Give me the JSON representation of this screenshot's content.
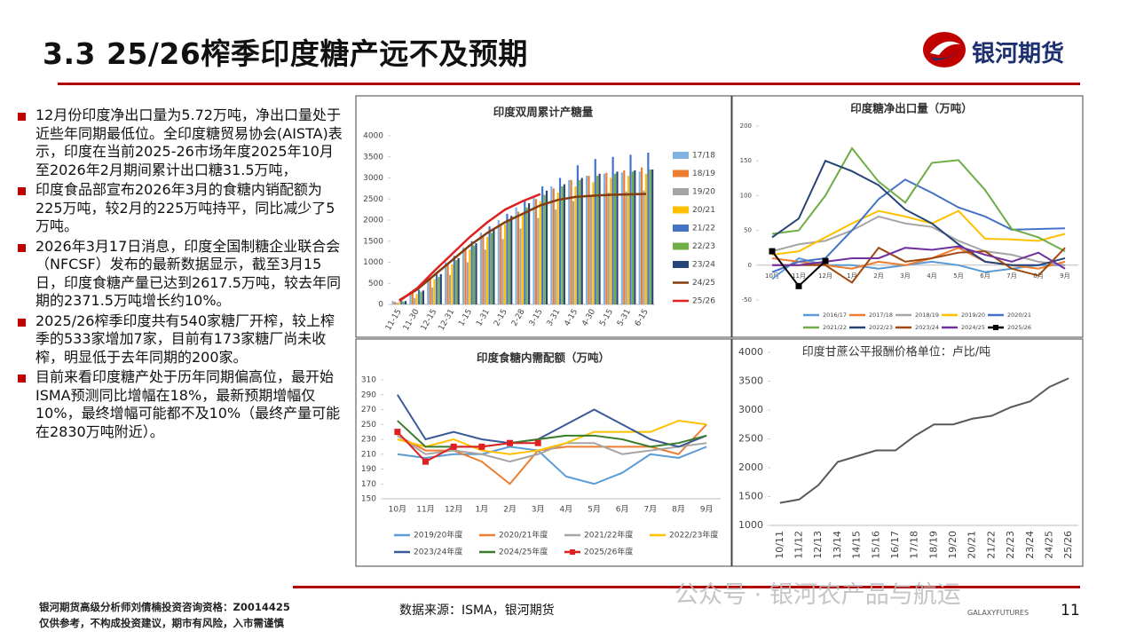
{
  "header": {
    "title": "3.3  25/26榨季印度糖产远不及预期",
    "logo": "银河期货"
  },
  "bullets": [
    "12月份印度净出口量为5.72万吨，净出口量处于近些年同期最低位。全印度糖贸易协会(AISTA)表示，印度在当前2025-26市场年度2025年10月至2026年2月期间累计出口糖31.5万吨，",
    "印度食品部宣布2026年3月的食糖内销配额为225万吨，较2月的225万吨持平，同比减少了5万吨。",
    "2026年3月17日消息，印度全国制糖企业联合会（NFCSF）发布的最新数据显示，截至3月15日，印度食糖产量已达到2617.5万吨，较去年同期的2371.5万吨增长约10%。",
    "2025/26榨季印度共有540家糖厂开榨，较上榨季的533家增加7家，目前有173家糖厂尚未收榨，明显低于去年同期的200家。",
    "目前来看印度糖产处于历年同期偏高位，最开始ISMA预测同比增幅在18%，最新预期增幅仅10%，最终增幅可能都不及10%（最终产量可能在2830万吨附近）。"
  ],
  "footer": {
    "analyst": "银河期货高级分析师刘倩楠投资咨询资格：Z0014425",
    "disclaimer": "仅供参考，不构成投资建议，期市有风险，入市需谨慎",
    "source": "数据来源：ISMA，银河期货",
    "watermark": "公众号 · 银河农产品与航运",
    "brand": "GALAXYFUTURES",
    "page": "11"
  },
  "chart_data": [
    {
      "type": "bar",
      "title": "印度双周累计产糖量",
      "grid": false,
      "legend": "right",
      "categories": [
        "11-15",
        "11-30",
        "12-15",
        "12-31",
        "1-15",
        "1-31",
        "2-15",
        "2-28",
        "3-15",
        "3-31",
        "4-15",
        "4-30",
        "5-15",
        "5-31",
        "6-15"
      ],
      "ylim": [
        0,
        4000
      ],
      "yticks": [
        0,
        500,
        1000,
        1500,
        2000,
        2500,
        3000,
        3500,
        4000
      ],
      "series": [
        {
          "name": "17/18",
          "color": "#7fb2e0",
          "values": [
            80,
            300,
            650,
            1000,
            1350,
            1700,
            2000,
            2300,
            2550,
            2800,
            2950,
            3050,
            3100,
            3130,
            3150
          ]
        },
        {
          "name": "18/19",
          "color": "#ed7d31",
          "values": [
            60,
            280,
            620,
            980,
            1300,
            1620,
            1900,
            2200,
            2500,
            2750,
            2950,
            3050,
            3120,
            3180,
            3250
          ]
        },
        {
          "name": "19/20",
          "color": "#a5a5a5",
          "values": [
            40,
            150,
            400,
            700,
            1000,
            1300,
            1550,
            1800,
            2050,
            2250,
            2450,
            2600,
            2650,
            2680,
            2700
          ]
        },
        {
          "name": "20/21",
          "color": "#ffc000",
          "values": [
            50,
            250,
            600,
            950,
            1300,
            1600,
            1900,
            2150,
            2450,
            2650,
            2800,
            2900,
            3000,
            3050,
            3100
          ]
        },
        {
          "name": "21/22",
          "color": "#4472c4",
          "values": [
            90,
            350,
            750,
            1150,
            1500,
            1850,
            2150,
            2450,
            2800,
            3000,
            3300,
            3450,
            3500,
            3550,
            3600
          ]
        },
        {
          "name": "22/23",
          "color": "#70ad47",
          "values": [
            70,
            300,
            650,
            1050,
            1400,
            1700,
            2000,
            2300,
            2600,
            2800,
            2950,
            3050,
            3100,
            3150,
            3200
          ]
        },
        {
          "name": "23/24",
          "color": "#264478",
          "values": [
            80,
            330,
            720,
            1100,
            1450,
            1800,
            2100,
            2400,
            2700,
            2850,
            3000,
            3100,
            3150,
            3180,
            3200
          ]
        },
        {
          "name": "24/25",
          "color": "#843c0c",
          "type": "line",
          "values": [
            100,
            350,
            700,
            1050,
            1400,
            1700,
            1950,
            2150,
            2350,
            2480,
            2550,
            2580,
            2600,
            2610,
            2620
          ]
        },
        {
          "name": "25/26",
          "color": "#e02020",
          "type": "line",
          "values": [
            80,
            380,
            800,
            1200,
            1600,
            1950,
            2250,
            2450,
            2617.5,
            null,
            null,
            null,
            null,
            null,
            null
          ]
        }
      ]
    },
    {
      "type": "line",
      "title": "印度糖净出口量（万吨）",
      "grid": false,
      "legend": "bottom",
      "categories": [
        "10月",
        "11月",
        "12月",
        "1月",
        "2月",
        "3月",
        "4月",
        "5月",
        "6月",
        "7月",
        "8月",
        "9月"
      ],
      "ylim": [
        -50,
        200
      ],
      "yticks": [
        -50,
        0,
        50,
        100,
        150,
        200
      ],
      "series": [
        {
          "name": "2016/17",
          "color": "#5b9bd5",
          "values": [
            -20,
            10,
            0,
            0,
            -5,
            0,
            5,
            0,
            -10,
            -5,
            0,
            0
          ]
        },
        {
          "name": "2017/18",
          "color": "#ed7d31",
          "values": [
            10,
            5,
            0,
            -5,
            5,
            0,
            10,
            25,
            5,
            0,
            -5,
            5
          ]
        },
        {
          "name": "2018/19",
          "color": "#a5a5a5",
          "values": [
            20,
            30,
            35,
            50,
            70,
            60,
            55,
            35,
            20,
            15,
            5,
            0
          ]
        },
        {
          "name": "2019/20",
          "color": "#ffc000",
          "values": [
            15,
            20,
            40,
            60,
            78,
            70,
            60,
            78,
            38,
            37,
            35,
            45
          ]
        },
        {
          "name": "2020/21",
          "color": "#4472c4",
          "values": [
            -10,
            5,
            10,
            50,
            95,
            123,
            104,
            83,
            70,
            51,
            52,
            53
          ]
        },
        {
          "name": "2021/22",
          "color": "#70ad47",
          "values": [
            45,
            50,
            100,
            168,
            120,
            90,
            147,
            151,
            108,
            52,
            40,
            20
          ]
        },
        {
          "name": "2022/23",
          "color": "#264478",
          "values": [
            40,
            67,
            150,
            135,
            115,
            80,
            60,
            30,
            5,
            0,
            0,
            10
          ]
        },
        {
          "name": "2023/24",
          "color": "#9e480e",
          "values": [
            0,
            0,
            0,
            -25,
            25,
            5,
            10,
            18,
            20,
            -5,
            -15,
            25
          ]
        },
        {
          "name": "2024/25",
          "color": "#7030a0",
          "values": [
            0,
            0,
            5,
            10,
            10,
            25,
            22,
            27,
            15,
            5,
            18,
            -5
          ]
        },
        {
          "name": "2025/26",
          "color": "#000000",
          "marker": "square",
          "values": [
            20,
            -30,
            6,
            null,
            null,
            null,
            null,
            null,
            null,
            null,
            null,
            null
          ]
        }
      ]
    },
    {
      "type": "line",
      "title": "印度食糖内需配额（万吨）",
      "grid": false,
      "legend": "bottom",
      "categories": [
        "10月",
        "11月",
        "12月",
        "1月",
        "2月",
        "3月",
        "4月",
        "5月",
        "6月",
        "7月",
        "8月",
        "9月"
      ],
      "ylim": [
        150,
        310
      ],
      "yticks": [
        150,
        170,
        190,
        210,
        230,
        250,
        270,
        290,
        310
      ],
      "series": [
        {
          "name": "2019/20年度",
          "color": "#5b9bd5",
          "values": [
            210,
            205,
            210,
            210,
            220,
            215,
            180,
            170,
            185,
            210,
            205,
            220
          ]
        },
        {
          "name": "2020/21年度",
          "color": "#ed7d31",
          "values": [
            235,
            215,
            215,
            200,
            170,
            215,
            220,
            220,
            220,
            220,
            210,
            250
          ]
        },
        {
          "name": "2021/22年度",
          "color": "#a5a5a5",
          "values": [
            235,
            210,
            215,
            210,
            200,
            210,
            225,
            225,
            210,
            215,
            220,
            225
          ]
        },
        {
          "name": "2022/23年度",
          "color": "#ffc000",
          "values": [
            230,
            220,
            230,
            215,
            210,
            215,
            225,
            240,
            240,
            240,
            255,
            250
          ]
        },
        {
          "name": "2023/24年度",
          "color": "#3b5998",
          "values": [
            290,
            230,
            240,
            230,
            225,
            230,
            250,
            270,
            250,
            230,
            220,
            235
          ]
        },
        {
          "name": "2024/25年度",
          "color": "#3a7d2c",
          "values": [
            255,
            220,
            220,
            220,
            225,
            230,
            235,
            235,
            230,
            220,
            225,
            235
          ]
        },
        {
          "name": "2025/26年度",
          "color": "#e02020",
          "marker": "square",
          "values": [
            240,
            200,
            220,
            220,
            225,
            225,
            null,
            null,
            null,
            null,
            null,
            null
          ]
        }
      ]
    },
    {
      "type": "line",
      "title": "印度甘蔗公平报酬价格单位：卢比/吨",
      "grid": false,
      "categories": [
        "10/11",
        "11/12",
        "12/13",
        "13/14",
        "14/15",
        "15/16",
        "16/17",
        "17/18",
        "18/19",
        "19/20",
        "20/21",
        "21/22",
        "22/23",
        "23/24",
        "24/25",
        "25/26"
      ],
      "ylim": [
        1000,
        4000
      ],
      "yticks": [
        1000,
        1500,
        2000,
        2500,
        3000,
        3500,
        4000
      ],
      "series": [
        {
          "color": "#595959",
          "values": [
            1390,
            1450,
            1700,
            2100,
            2200,
            2300,
            2300,
            2550,
            2750,
            2750,
            2850,
            2900,
            3050,
            3150,
            3400,
            3550
          ]
        }
      ]
    }
  ]
}
